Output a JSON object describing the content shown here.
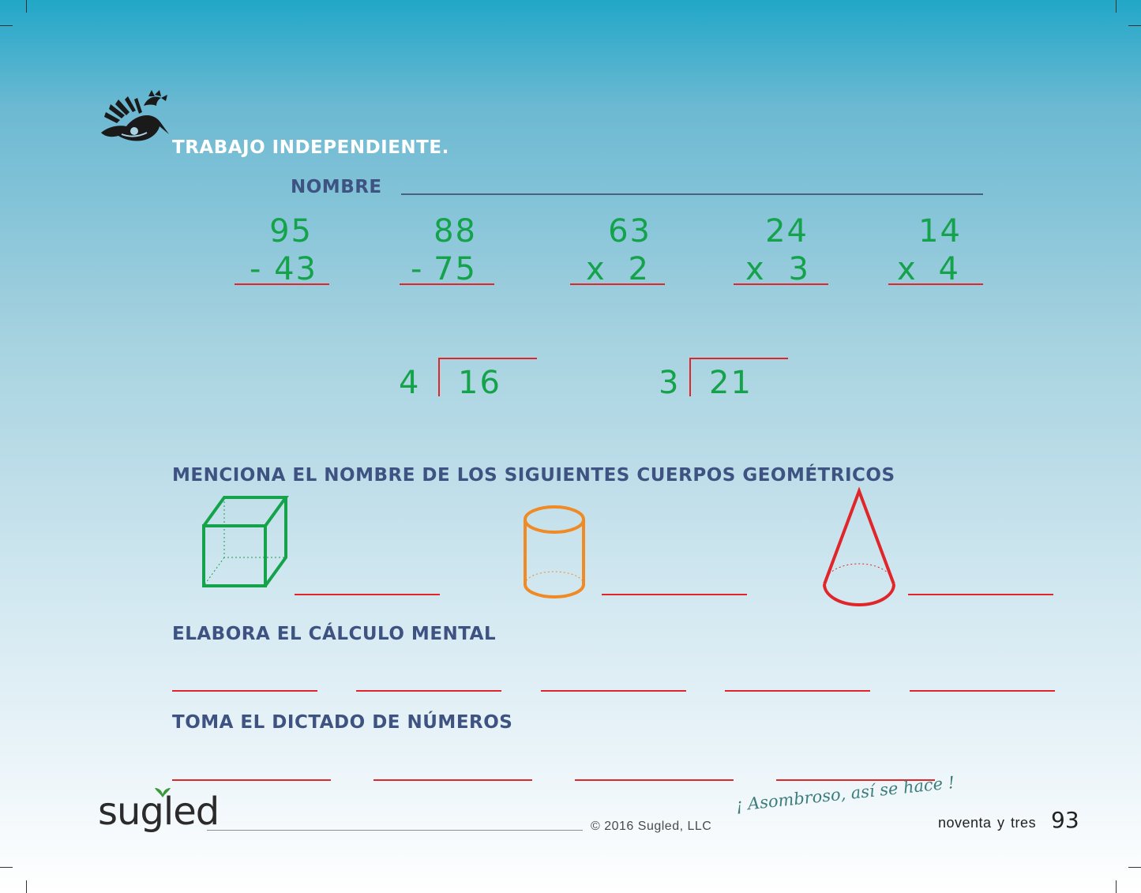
{
  "title": "TRABAJO INDEPENDIENTE.",
  "name_label": "NOMBRE",
  "operations": [
    {
      "top": "95",
      "operator": "-",
      "bottom": "43"
    },
    {
      "top": "88",
      "operator": "-",
      "bottom": "75"
    },
    {
      "top": "63",
      "operator": "x",
      "bottom": "2"
    },
    {
      "top": "24",
      "operator": "x",
      "bottom": "3"
    },
    {
      "top": "14",
      "operator": "x",
      "bottom": "4"
    }
  ],
  "divisions": [
    {
      "divisor": "4",
      "dividend": "16"
    },
    {
      "divisor": "3",
      "dividend": "21"
    }
  ],
  "section_geometric": "MENCIONA EL NOMBRE DE LOS SIGUIENTES CUERPOS GEOMÉTRICOS",
  "shapes": [
    {
      "name": "cube",
      "color": "#14a24a"
    },
    {
      "name": "cylinder",
      "color": "#f08a24"
    },
    {
      "name": "cone",
      "color": "#e0262b"
    }
  ],
  "section_mental": "ELABORA EL CÁLCULO MENTAL",
  "section_dictation": "TOMA EL DICTADO DE NÚMEROS",
  "footer": {
    "brand": "sugled",
    "copyright": "© 2016 Sugled, LLC",
    "slogan": "¡ Asombroso, así se hace !",
    "page_words": "noventa y tres",
    "page_number": "93"
  },
  "colors": {
    "green": "#14a24a",
    "red": "#e0262b",
    "heading": "#3e5382"
  }
}
